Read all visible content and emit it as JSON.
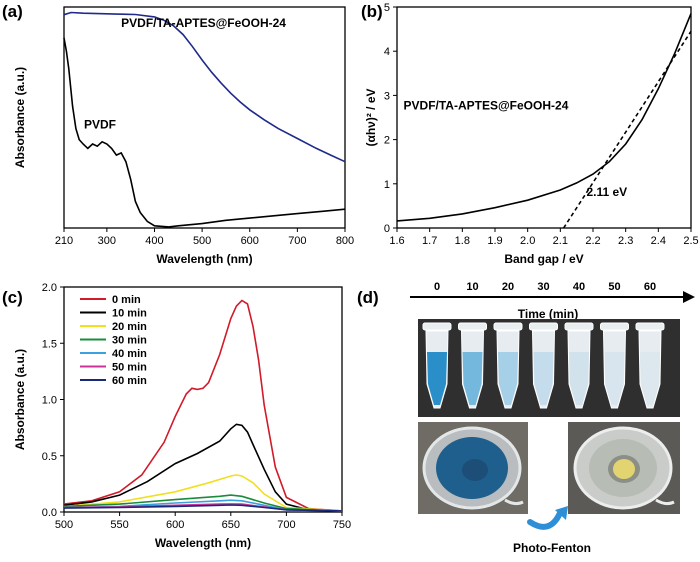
{
  "chart_data": [
    {
      "panel_label": "(a)",
      "type": "line",
      "xlabel": "Wavelength (nm)",
      "ylabel": "Absorbance (a.u.)",
      "xlim": [
        210,
        800
      ],
      "ylim": [
        0,
        1.0
      ],
      "xticks": [
        210,
        300,
        400,
        500,
        600,
        700,
        800
      ],
      "yticks": [],
      "series": [
        {
          "name": "PVDF/TA-APTES@FeOOH-24",
          "color": "#1f2a8a",
          "x": [
            210,
            225,
            250,
            280,
            320,
            360,
            400,
            420,
            440,
            460,
            480,
            500,
            520,
            540,
            560,
            580,
            600,
            630,
            660,
            700,
            740,
            770,
            800
          ],
          "y": [
            0.965,
            0.975,
            0.972,
            0.97,
            0.968,
            0.966,
            0.955,
            0.94,
            0.915,
            0.875,
            0.82,
            0.76,
            0.705,
            0.655,
            0.61,
            0.57,
            0.535,
            0.49,
            0.45,
            0.405,
            0.36,
            0.33,
            0.3
          ]
        },
        {
          "name": "PVDF",
          "color": "#000000",
          "x": [
            210,
            215,
            220,
            228,
            235,
            242,
            250,
            260,
            270,
            280,
            290,
            300,
            310,
            320,
            330,
            340,
            350,
            360,
            370,
            385,
            400,
            430,
            450,
            500,
            550,
            600,
            650,
            700,
            750,
            800
          ],
          "y": [
            0.86,
            0.8,
            0.72,
            0.55,
            0.45,
            0.4,
            0.38,
            0.36,
            0.38,
            0.37,
            0.39,
            0.38,
            0.36,
            0.33,
            0.34,
            0.3,
            0.22,
            0.12,
            0.07,
            0.03,
            0.01,
            0.005,
            0.01,
            0.02,
            0.035,
            0.045,
            0.055,
            0.065,
            0.075,
            0.085
          ]
        }
      ]
    },
    {
      "panel_label": "(b)",
      "type": "line",
      "xlabel": "Band gap / eV",
      "ylabel": "(αhν)² / eV",
      "xlim": [
        1.6,
        2.5
      ],
      "ylim": [
        0,
        5
      ],
      "xticks": [
        1.6,
        1.7,
        1.8,
        1.9,
        2.0,
        2.1,
        2.2,
        2.3,
        2.4,
        2.5
      ],
      "yticks": [
        0,
        1,
        2,
        3,
        4,
        5
      ],
      "series_label": "PVDF/TA-APTES@FeOOH-24",
      "annotation": "2.11 eV",
      "series": [
        {
          "color": "#000000",
          "style": "solid",
          "x": [
            1.6,
            1.7,
            1.8,
            1.9,
            2.0,
            2.1,
            2.15,
            2.2,
            2.25,
            2.3,
            2.35,
            2.4,
            2.45,
            2.5
          ],
          "y": [
            0.16,
            0.22,
            0.32,
            0.46,
            0.63,
            0.86,
            1.02,
            1.22,
            1.5,
            1.9,
            2.45,
            3.15,
            3.95,
            4.85
          ]
        },
        {
          "color": "#000000",
          "style": "dashed",
          "x": [
            2.11,
            2.5
          ],
          "y": [
            0,
            4.45
          ]
        }
      ]
    },
    {
      "panel_label": "(c)",
      "type": "line",
      "xlabel": "Wavelength (nm)",
      "ylabel": "Absorbance (a.u.)",
      "xlim": [
        500,
        750
      ],
      "ylim": [
        0,
        2.0
      ],
      "xticks": [
        500,
        550,
        600,
        650,
        700,
        750
      ],
      "yticks": [
        0.0,
        0.5,
        1.0,
        1.5,
        2.0
      ],
      "ytick_labels": [
        "0.0",
        "0.5",
        "1.0",
        "1.5",
        "2.0"
      ],
      "series": [
        {
          "name": "0 min",
          "color": "#d11a2a",
          "x": [
            500,
            525,
            550,
            570,
            590,
            600,
            610,
            615,
            620,
            625,
            630,
            640,
            650,
            655,
            660,
            665,
            670,
            675,
            680,
            690,
            700,
            720,
            750
          ],
          "y": [
            0.07,
            0.1,
            0.18,
            0.33,
            0.62,
            0.85,
            1.05,
            1.1,
            1.09,
            1.1,
            1.15,
            1.4,
            1.72,
            1.83,
            1.88,
            1.85,
            1.65,
            1.35,
            0.95,
            0.4,
            0.13,
            0.03,
            0.01
          ]
        },
        {
          "name": "10 min",
          "color": "#000000",
          "x": [
            500,
            525,
            550,
            575,
            600,
            620,
            640,
            650,
            655,
            660,
            665,
            670,
            680,
            690,
            700,
            720,
            750
          ],
          "y": [
            0.06,
            0.09,
            0.15,
            0.27,
            0.43,
            0.52,
            0.63,
            0.74,
            0.78,
            0.77,
            0.71,
            0.6,
            0.38,
            0.18,
            0.07,
            0.02,
            0.01
          ]
        },
        {
          "name": "20 min",
          "color": "#f0e020",
          "x": [
            500,
            550,
            600,
            630,
            650,
            655,
            660,
            670,
            680,
            700,
            750
          ],
          "y": [
            0.05,
            0.09,
            0.18,
            0.26,
            0.32,
            0.33,
            0.32,
            0.26,
            0.16,
            0.04,
            0.01
          ]
        },
        {
          "name": "30 min",
          "color": "#1a8c3a",
          "x": [
            500,
            550,
            600,
            640,
            650,
            660,
            680,
            700,
            750
          ],
          "y": [
            0.05,
            0.07,
            0.11,
            0.14,
            0.15,
            0.14,
            0.08,
            0.03,
            0.01
          ]
        },
        {
          "name": "40 min",
          "color": "#3aa0e0",
          "x": [
            500,
            550,
            600,
            640,
            650,
            660,
            680,
            700,
            750
          ],
          "y": [
            0.04,
            0.05,
            0.08,
            0.1,
            0.105,
            0.1,
            0.06,
            0.02,
            0.01
          ]
        },
        {
          "name": "50 min",
          "color": "#cc3399",
          "x": [
            500,
            550,
            600,
            640,
            650,
            660,
            680,
            700,
            750
          ],
          "y": [
            0.04,
            0.045,
            0.06,
            0.07,
            0.072,
            0.07,
            0.045,
            0.02,
            0.01
          ]
        },
        {
          "name": "60 min",
          "color": "#1a2a7a",
          "x": [
            500,
            550,
            600,
            640,
            650,
            660,
            680,
            700,
            750
          ],
          "y": [
            0.035,
            0.04,
            0.05,
            0.06,
            0.062,
            0.06,
            0.04,
            0.02,
            0.01
          ]
        }
      ]
    }
  ],
  "panel_d": {
    "panel_label": "(d)",
    "timeline_ticks": [
      "0",
      "10",
      "20",
      "30",
      "40",
      "50",
      "60"
    ],
    "time_label": "Time (min)",
    "tube_colors": [
      "#2a8fc8",
      "#74b8de",
      "#a6cfe8",
      "#c4dcec",
      "#d2e2ed",
      "#d9e5ee",
      "#dde7ee"
    ],
    "process_label": "Photo-Fenton",
    "photo_bg_color": "#2f2f2f",
    "before_water_color": "#1f5f8e",
    "after_water_color": "#e2d470",
    "arrow_color": "#2f8fd6"
  }
}
